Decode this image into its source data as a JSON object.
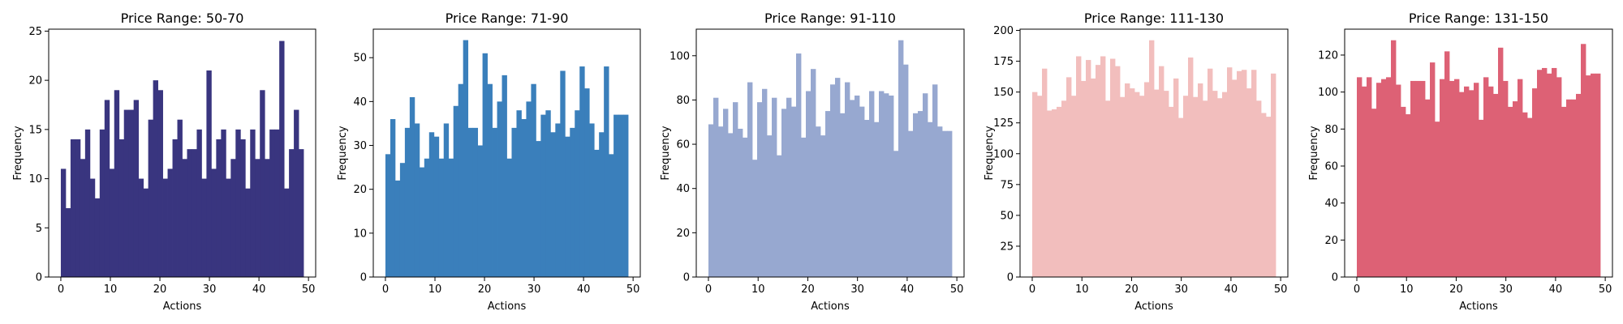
{
  "chart_data": [
    {
      "type": "bar",
      "title": "Price Range: 50-70",
      "xlabel": "Actions",
      "ylabel": "Frequency",
      "color": "#39357f",
      "xlim": [
        -2.45,
        51.45
      ],
      "ylim": [
        0,
        25.2
      ],
      "xticks": [
        0,
        10,
        20,
        30,
        40,
        50
      ],
      "yticks": [
        0,
        5,
        10,
        15,
        20,
        25
      ],
      "grid": false,
      "values": [
        11,
        7,
        14,
        14,
        12,
        15,
        10,
        8,
        15,
        18,
        11,
        19,
        14,
        17,
        17,
        18,
        10,
        9,
        16,
        20,
        19,
        10,
        11,
        14,
        16,
        12,
        13,
        13,
        15,
        10,
        21,
        11,
        14,
        15,
        10,
        12,
        15,
        14,
        9,
        15,
        12,
        19,
        12,
        15,
        15,
        24,
        9,
        13,
        17,
        13
      ]
    },
    {
      "type": "bar",
      "title": "Price Range: 71-90",
      "xlabel": "Actions",
      "ylabel": "Frequency",
      "color": "#3a7fbb",
      "xlim": [
        -2.45,
        51.45
      ],
      "ylim": [
        0,
        56.5
      ],
      "xticks": [
        0,
        10,
        20,
        30,
        40,
        50
      ],
      "yticks": [
        0,
        10,
        20,
        30,
        40,
        50
      ],
      "grid": false,
      "values": [
        28,
        36,
        22,
        26,
        34,
        41,
        35,
        25,
        27,
        33,
        32,
        27,
        35,
        27,
        39,
        44,
        54,
        34,
        34,
        30,
        51,
        44,
        34,
        40,
        46,
        27,
        34,
        38,
        36,
        40,
        44,
        31,
        37,
        38,
        33,
        35,
        47,
        32,
        34,
        38,
        48,
        43,
        35,
        29,
        33,
        48,
        28,
        37,
        37,
        37
      ]
    },
    {
      "type": "bar",
      "title": "Price Range: 91-110",
      "xlabel": "Actions",
      "ylabel": "Frequency",
      "color": "#97a8d0",
      "xlim": [
        -2.45,
        51.45
      ],
      "ylim": [
        0,
        112
      ],
      "xticks": [
        0,
        10,
        20,
        30,
        40,
        50
      ],
      "yticks": [
        0,
        20,
        40,
        60,
        80,
        100
      ],
      "grid": false,
      "values": [
        69,
        81,
        68,
        76,
        65,
        79,
        67,
        63,
        88,
        53,
        79,
        85,
        64,
        81,
        55,
        76,
        81,
        77,
        101,
        63,
        84,
        94,
        68,
        64,
        75,
        87,
        90,
        74,
        88,
        80,
        82,
        77,
        71,
        84,
        70,
        84,
        83,
        82,
        57,
        107,
        96,
        66,
        74,
        75,
        83,
        70,
        87,
        68,
        66,
        66
      ]
    },
    {
      "type": "bar",
      "title": "Price Range: 111-130",
      "xlabel": "Actions",
      "ylabel": "Frequency",
      "color": "#f2bebd",
      "xlim": [
        -2.45,
        51.45
      ],
      "ylim": [
        0,
        201
      ],
      "xticks": [
        0,
        10,
        20,
        30,
        40,
        50
      ],
      "yticks": [
        0,
        25,
        50,
        75,
        100,
        125,
        150,
        175,
        200
      ],
      "grid": false,
      "values": [
        150,
        147,
        169,
        135,
        136,
        138,
        143,
        162,
        147,
        179,
        159,
        176,
        161,
        172,
        179,
        143,
        177,
        171,
        146,
        157,
        153,
        150,
        147,
        158,
        192,
        152,
        171,
        151,
        138,
        161,
        129,
        147,
        178,
        146,
        157,
        143,
        169,
        151,
        145,
        150,
        170,
        160,
        167,
        168,
        153,
        168,
        143,
        133,
        130,
        165
      ]
    },
    {
      "type": "bar",
      "title": "Price Range: 131-150",
      "xlabel": "Actions",
      "ylabel": "Frequency",
      "color": "#dd6175",
      "xlim": [
        -2.45,
        51.45
      ],
      "ylim": [
        0,
        134
      ],
      "xticks": [
        0,
        10,
        20,
        30,
        40,
        50
      ],
      "yticks": [
        0,
        20,
        40,
        60,
        80,
        100,
        120
      ],
      "grid": false,
      "values": [
        108,
        103,
        108,
        91,
        105,
        107,
        108,
        128,
        104,
        92,
        88,
        106,
        106,
        106,
        96,
        116,
        84,
        107,
        122,
        106,
        107,
        100,
        103,
        101,
        105,
        85,
        108,
        103,
        99,
        124,
        106,
        92,
        95,
        107,
        89,
        86,
        102,
        112,
        113,
        110,
        113,
        108,
        92,
        96,
        96,
        99,
        126,
        109,
        110,
        110
      ]
    }
  ]
}
